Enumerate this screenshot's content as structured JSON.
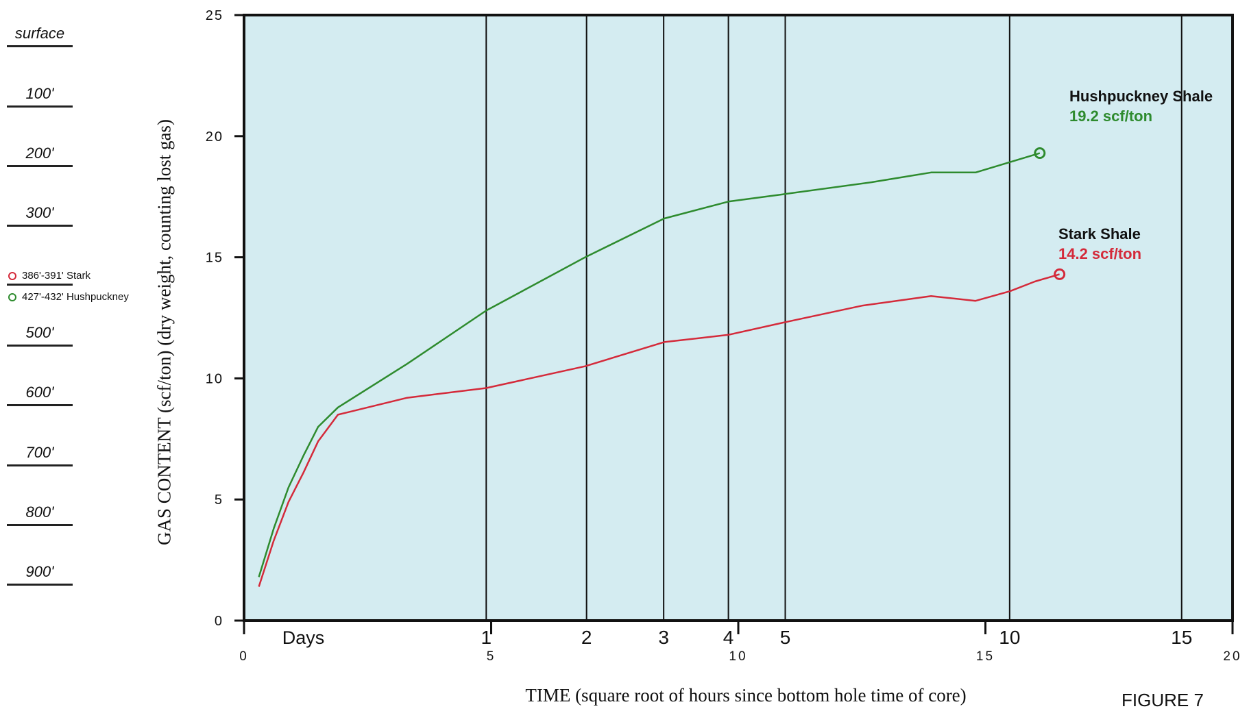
{
  "figure_label": "FIGURE 7",
  "depth_column": {
    "labels": [
      "surface",
      "100'",
      "200'",
      "300'",
      "500'",
      "600'",
      "700'",
      "800'",
      "900'"
    ],
    "samples": [
      {
        "label": "386'-391'  Stark",
        "color": "#d42a3a"
      },
      {
        "label": "427'-432'  Hushpuckney",
        "color": "#2e8b2e"
      }
    ]
  },
  "chart_data": {
    "type": "line",
    "title": "",
    "ylabel": "GAS CONTENT (scf/ton) (dry weight, counting lost gas)",
    "xlabel": "TIME (square root of hours since bottom hole time of core)",
    "ylim": [
      0,
      25
    ],
    "xlim": [
      0,
      20
    ],
    "y_ticks": [
      0,
      5,
      10,
      15,
      20,
      25
    ],
    "x_ticks": [
      0,
      5,
      10,
      15,
      20
    ],
    "days_label": "Days",
    "day_lines": [
      {
        "label": "1",
        "x": 4.9
      },
      {
        "label": "2",
        "x": 6.93
      },
      {
        "label": "3",
        "x": 8.49
      },
      {
        "label": "4",
        "x": 9.8
      },
      {
        "label": "5",
        "x": 10.95
      },
      {
        "label": "10",
        "x": 15.49
      },
      {
        "label": "15",
        "x": 18.97
      }
    ],
    "background_color": "#d4ecf1",
    "grid": false,
    "series": [
      {
        "name": "Hushpuckney Shale",
        "end_label": "19.2 scf/ton",
        "color": "#2e8b2e",
        "x": [
          0.3,
          0.6,
          0.9,
          1.2,
          1.5,
          1.9,
          3.3,
          4.9,
          6.9,
          8.5,
          9.8,
          10.9,
          12.7,
          13.9,
          14.8,
          16.1
        ],
        "y": [
          1.8,
          3.8,
          5.5,
          6.8,
          8.0,
          8.8,
          10.6,
          12.8,
          15.0,
          16.6,
          17.3,
          17.6,
          18.1,
          18.5,
          18.5,
          19.3
        ]
      },
      {
        "name": "Stark Shale",
        "end_label": "14.2 scf/ton",
        "color": "#d42a3a",
        "x": [
          0.3,
          0.6,
          0.9,
          1.2,
          1.5,
          1.9,
          3.3,
          4.9,
          6.9,
          8.5,
          9.8,
          10.9,
          12.5,
          13.9,
          14.8,
          15.5,
          16.0,
          16.5
        ],
        "y": [
          1.4,
          3.3,
          4.9,
          6.1,
          7.4,
          8.5,
          9.2,
          9.6,
          10.5,
          11.5,
          11.8,
          12.3,
          13.0,
          13.4,
          13.2,
          13.6,
          14.0,
          14.3
        ]
      }
    ]
  }
}
